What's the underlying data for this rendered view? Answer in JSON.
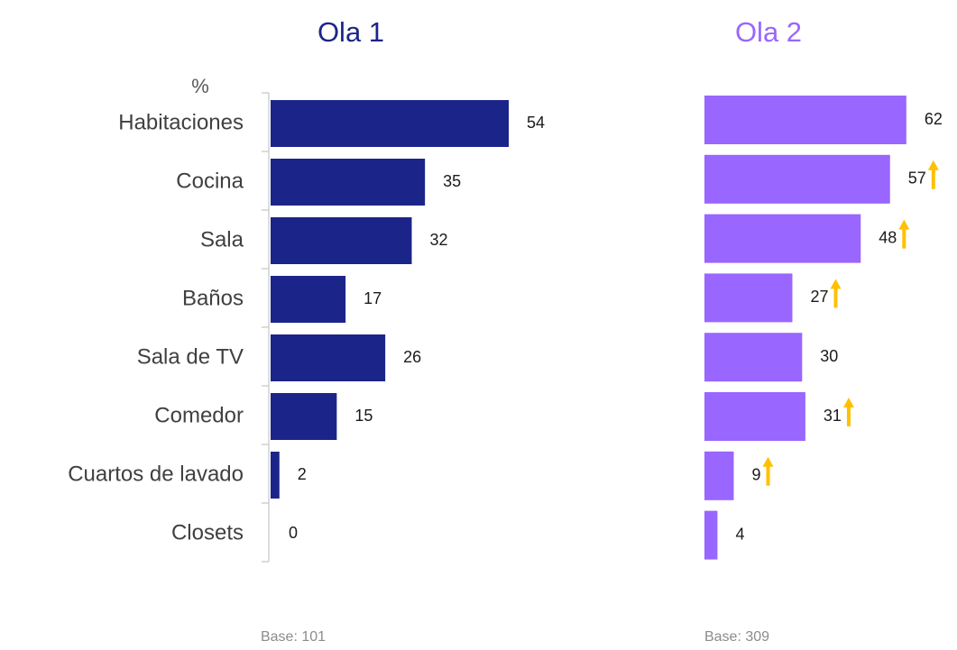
{
  "chart_data": [
    {
      "type": "bar",
      "orientation": "horizontal",
      "title": "Ola 1",
      "unit_label": "%",
      "categories": [
        "Habitaciones",
        "Cocina",
        "Sala",
        "Baños",
        "Sala de TV",
        "Comedor",
        "Cuartos de lavado",
        "Closets"
      ],
      "values": [
        54,
        35,
        32,
        17,
        26,
        15,
        2,
        0
      ],
      "color": "#1b2589",
      "footnote": "Base: 101"
    },
    {
      "type": "bar",
      "orientation": "horizontal",
      "title": "Ola 2",
      "values": [
        62,
        57,
        48,
        27,
        30,
        31,
        9,
        4
      ],
      "color": "#9966ff",
      "significant_increase": [
        false,
        true,
        true,
        true,
        false,
        true,
        true,
        false
      ],
      "arrow_color": "#ffc000",
      "footnote": "Base: 309"
    }
  ]
}
